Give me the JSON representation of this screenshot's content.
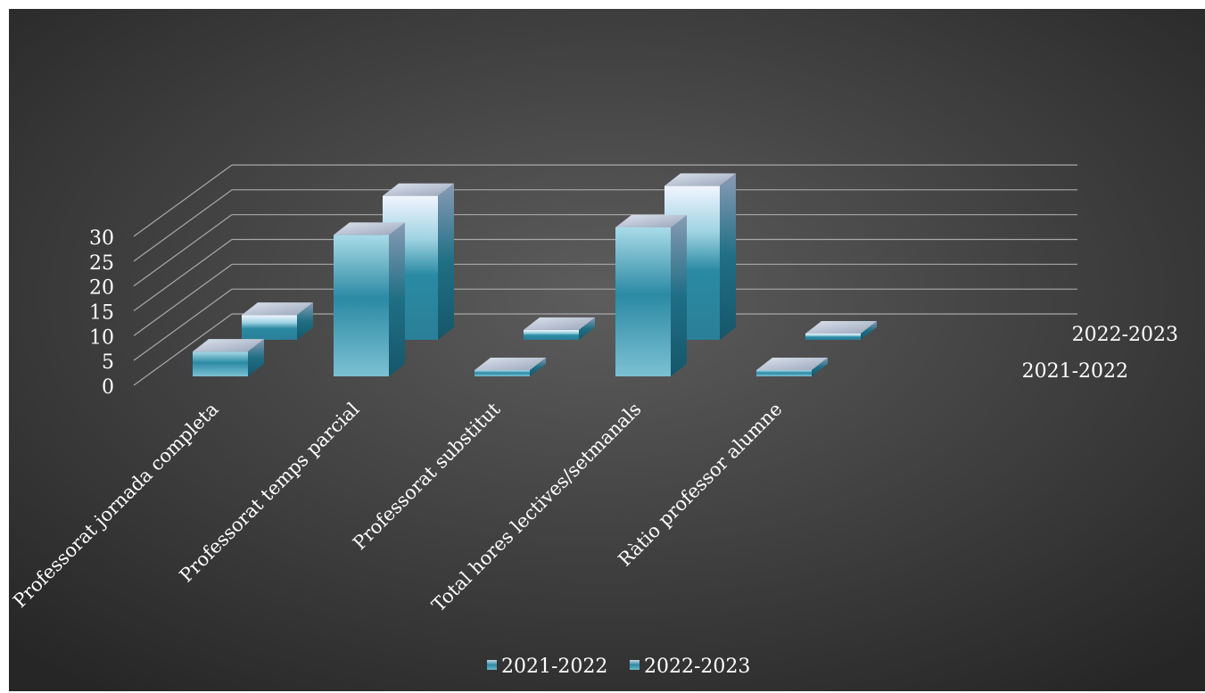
{
  "chart_data": {
    "type": "bar",
    "title": "",
    "xlabel": "",
    "ylabel": "",
    "ylim": [
      0,
      30
    ],
    "yticks": [
      0,
      5,
      10,
      15,
      20,
      25,
      30
    ],
    "categories": [
      "Professorat jornada completa",
      "Professorat temps parcial",
      "Professorat substitut",
      "Total hores lectives/setmanals",
      "Ràtio professor alumne"
    ],
    "series": [
      {
        "name": "2021-2022",
        "values": [
          5,
          28.5,
          1,
          30,
          1
        ]
      },
      {
        "name": "2022-2023",
        "values": [
          5,
          29,
          2,
          31,
          1
        ]
      }
    ],
    "grid": true,
    "legend": "bottom",
    "style": "3d",
    "colors": {
      "background_outer": "#2a2a2a",
      "background_inner": "#5a5a5a",
      "bar_front": "#5fb4cc",
      "bar_front_dark": "#2a8aa3",
      "bar_side": "#1f6f85",
      "bar_top": "#c9d0dc",
      "grid": "#a8a8a8"
    }
  }
}
